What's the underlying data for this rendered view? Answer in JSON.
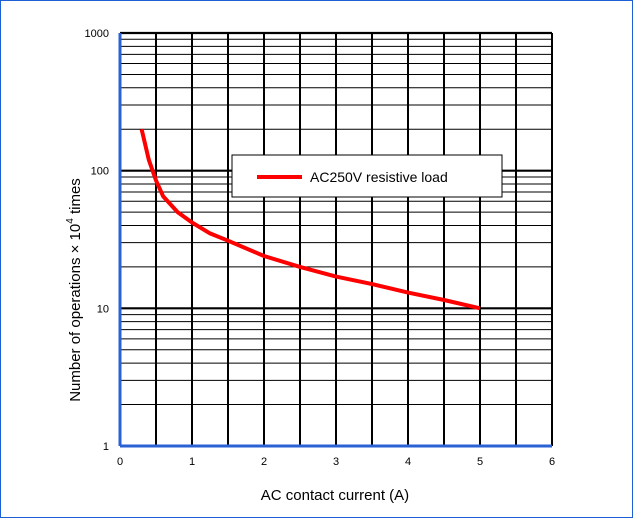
{
  "chart_data": {
    "type": "line",
    "x_axis": {
      "label": "AC contact current (A)",
      "range": [
        0,
        6
      ],
      "ticks": [
        0,
        1,
        2,
        3,
        4,
        5,
        6
      ],
      "tick_labels": [
        "0",
        "1",
        "2",
        "3",
        "4",
        "5",
        "6"
      ]
    },
    "y_axis": {
      "label_parts": [
        "Number of operations × 10",
        "4",
        " times"
      ],
      "scale": "log",
      "range": [
        1,
        1000
      ],
      "ticks": [
        1,
        10,
        100,
        1000
      ],
      "tick_labels": [
        "1",
        "10",
        "100",
        "1000"
      ]
    },
    "grid": true,
    "legend_position": "upper-right-center",
    "series": [
      {
        "name": "AC250V resistive load",
        "color": "#ff0000",
        "x": [
          0.3,
          0.4,
          0.5,
          0.6,
          0.8,
          1.0,
          1.25,
          1.5,
          2.0,
          2.5,
          3.0,
          3.5,
          4.0,
          4.5,
          5.0
        ],
        "y": [
          200,
          120,
          85,
          65,
          50,
          42,
          35,
          31,
          24,
          20,
          17,
          15,
          13,
          11.5,
          10
        ]
      }
    ],
    "colors": {
      "axis": "#2a62d6",
      "grid": "#000000",
      "frame": "#1f5fd6"
    }
  }
}
